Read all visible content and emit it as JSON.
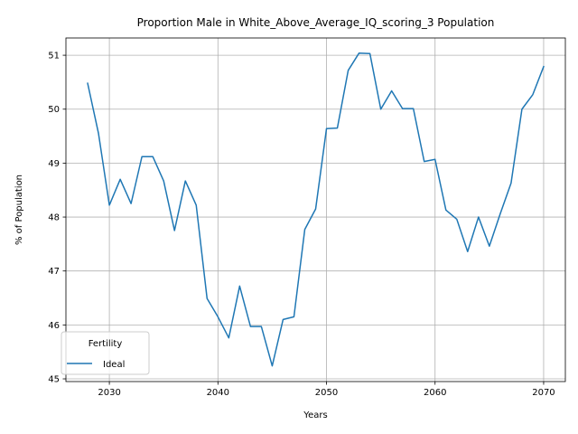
{
  "chart_data": {
    "type": "line",
    "title": "Proportion Male in White_Above_Average_IQ_scoring_3 Population",
    "xlabel": "Years",
    "ylabel": "% of Population",
    "xlim": [
      2026,
      2072
    ],
    "ylim": [
      44.95,
      51.32
    ],
    "x_ticks": [
      2030,
      2040,
      2050,
      2060,
      2070
    ],
    "y_ticks": [
      45,
      46,
      47,
      48,
      49,
      50,
      51
    ],
    "grid": true,
    "legend": {
      "title": "Fertility",
      "position": "lower-left"
    },
    "series": [
      {
        "name": "Ideal",
        "color": "#1f77b4",
        "x": [
          2028,
          2029,
          2030,
          2031,
          2032,
          2033,
          2034,
          2035,
          2036,
          2037,
          2038,
          2039,
          2040,
          2041,
          2042,
          2043,
          2044,
          2045,
          2046,
          2047,
          2048,
          2049,
          2050,
          2051,
          2052,
          2053,
          2054,
          2055,
          2056,
          2057,
          2058,
          2059,
          2060,
          2061,
          2062,
          2063,
          2064,
          2065,
          2066,
          2067,
          2068,
          2069,
          2070
        ],
        "values": [
          50.48,
          49.55,
          48.22,
          48.7,
          48.25,
          49.12,
          49.12,
          48.67,
          47.75,
          48.67,
          48.22,
          46.49,
          46.15,
          45.76,
          46.72,
          45.97,
          45.97,
          45.24,
          46.1,
          46.15,
          47.77,
          48.15,
          49.64,
          49.65,
          50.72,
          51.04,
          51.03,
          50.0,
          50.34,
          50.01,
          50.01,
          49.03,
          49.07,
          48.13,
          47.96,
          47.36,
          48.0,
          47.46,
          48.06,
          48.63,
          50.0,
          50.27,
          50.79
        ]
      }
    ]
  }
}
